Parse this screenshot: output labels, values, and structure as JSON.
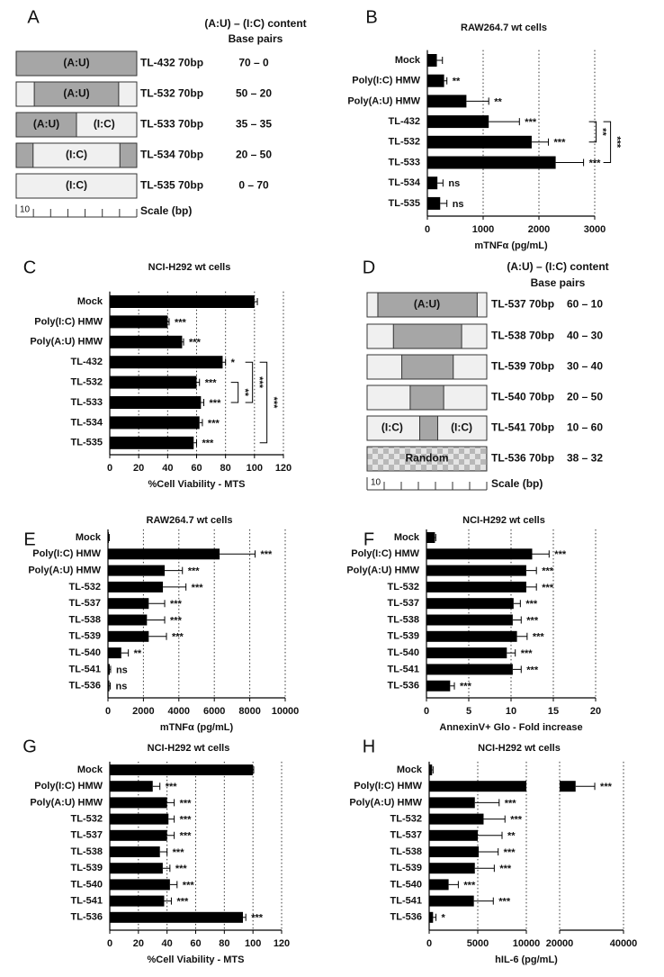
{
  "panel_labels": [
    "A",
    "B",
    "C",
    "D",
    "E",
    "F",
    "G",
    "H"
  ],
  "diagram_a": {
    "header": "(A:U) – (I:C) content",
    "subheader": "Base pairs",
    "rows": [
      {
        "name": "TL-432 70bp",
        "pairs": "70 – 0",
        "labels": [
          "(A:U)"
        ]
      },
      {
        "name": "TL-532 70bp",
        "pairs": "50 – 20",
        "labels": [
          "(A:U)"
        ]
      },
      {
        "name": "TL-533 70bp",
        "pairs": "35 – 35",
        "labels": [
          "(A:U)",
          "(I:C)"
        ]
      },
      {
        "name": "TL-534 70bp",
        "pairs": "20 – 50",
        "labels": [
          "(I:C)"
        ]
      },
      {
        "name": "TL-535 70bp",
        "pairs": "0 – 70",
        "labels": [
          "(I:C)"
        ]
      }
    ],
    "scale_number": 10,
    "scale_text": "Scale (bp)"
  },
  "diagram_d": {
    "header": "(A:U) – (I:C) content",
    "subheader": "Base pairs",
    "rows": [
      {
        "name": "TL-537 70bp",
        "pairs": "60 – 10",
        "labels": [
          "(A:U)"
        ]
      },
      {
        "name": "TL-538 70bp",
        "pairs": "40 – 30",
        "labels": []
      },
      {
        "name": "TL-539 70bp",
        "pairs": "30 – 40",
        "labels": []
      },
      {
        "name": "TL-540 70bp",
        "pairs": "20 – 50",
        "labels": []
      },
      {
        "name": "TL-541 70bp",
        "pairs": "10 – 60",
        "labels": [
          "(I:C)",
          "(I:C)"
        ]
      },
      {
        "name": "TL-536 70bp",
        "pairs": "38 – 32",
        "labels": [
          "Random"
        ]
      }
    ],
    "scale_number": 10,
    "scale_text": "Scale (bp)"
  },
  "chart_data": [
    {
      "type": "hbar",
      "title": "RAW264.7 wt cells",
      "xlabel": "mTNFα (pg/mL)",
      "categories": [
        "Mock",
        "Poly(I:C) HMW",
        "Poly(A:U) HMW",
        "TL-432",
        "TL-532",
        "TL-533",
        "TL-534",
        "TL-535"
      ],
      "values": [
        170,
        300,
        700,
        1100,
        1870,
        2300,
        180,
        230
      ],
      "errors": [
        100,
        50,
        400,
        550,
        300,
        500,
        100,
        120
      ],
      "annotations": [
        null,
        "**",
        "**",
        "***",
        "***",
        "***",
        "ns",
        "ns"
      ],
      "brackets": [
        {
          "from": 3,
          "to": 4,
          "label": "**"
        },
        {
          "from": 3,
          "to": 5,
          "label": "***"
        }
      ],
      "color": "#000000",
      "xlim": [
        0,
        3000
      ],
      "xticks": [
        0,
        1000,
        2000,
        3000
      ],
      "grid": true
    },
    {
      "type": "hbar",
      "title": "NCI-H292 wt cells",
      "xlabel": "%Cell Viability - MTS",
      "categories": [
        "Mock",
        "Poly(I:C) HMW",
        "Poly(A:U) HMW",
        "TL-432",
        "TL-532",
        "TL-533",
        "TL-534",
        "TL-535"
      ],
      "values": [
        100,
        40,
        50,
        78,
        60,
        63,
        62,
        58
      ],
      "errors": [
        2,
        1,
        1,
        2,
        2,
        2,
        2,
        2
      ],
      "annotations": [
        null,
        "***",
        "***",
        "*",
        "***",
        "***",
        "***",
        "***"
      ],
      "brackets": [
        {
          "from": 4,
          "to": 5,
          "label": "**"
        },
        {
          "from": 3,
          "to": 5,
          "label": "***"
        },
        {
          "from": 3,
          "to": 7,
          "label": "***"
        }
      ],
      "color": "#000000",
      "xlim": [
        0,
        120
      ],
      "xticks": [
        0,
        20,
        40,
        60,
        80,
        100,
        120
      ],
      "grid": true
    },
    {
      "type": "hbar",
      "title": "RAW264.7 wt cells",
      "xlabel": "mTNFα (pg/mL)",
      "categories": [
        "Mock",
        "Poly(I:C) HMW",
        "Poly(A:U) HMW",
        "TL-532",
        "TL-537",
        "TL-538",
        "TL-539",
        "TL-540",
        "TL-541",
        "TL-536"
      ],
      "values": [
        50,
        6300,
        3200,
        3100,
        2300,
        2200,
        2300,
        750,
        100,
        80
      ],
      "errors": [
        30,
        2000,
        1000,
        1300,
        900,
        1000,
        1000,
        400,
        50,
        50
      ],
      "annotations": [
        null,
        "***",
        "***",
        "***",
        "***",
        "***",
        "***",
        "**",
        "ns",
        "ns"
      ],
      "color": "#000000",
      "xlim": [
        0,
        10000
      ],
      "xticks": [
        0,
        2000,
        4000,
        6000,
        8000,
        10000
      ],
      "grid": true
    },
    {
      "type": "hbar",
      "title": "NCI-H292 wt cells",
      "xlabel": "AnnexinV+ Glo - Fold increase",
      "categories": [
        "Mock",
        "Poly(I:C) HMW",
        "Poly(A:U) HMW",
        "TL-532",
        "TL-537",
        "TL-538",
        "TL-539",
        "TL-540",
        "TL-541",
        "TL-536"
      ],
      "values": [
        1,
        12.5,
        11.8,
        11.8,
        10.3,
        10.2,
        10.7,
        9.5,
        10.2,
        2.8
      ],
      "errors": [
        0.1,
        2,
        1.2,
        1.2,
        0.8,
        1,
        1.2,
        1,
        1,
        0.5
      ],
      "annotations": [
        null,
        "***",
        "***",
        "***",
        "***",
        "***",
        "***",
        "***",
        "***",
        "***"
      ],
      "color": "#000000",
      "xlim": [
        0,
        20
      ],
      "xticks": [
        0,
        5,
        10,
        15,
        20
      ],
      "grid": true
    },
    {
      "type": "hbar",
      "title": "NCI-H292 wt cells",
      "xlabel": "%Cell Viability - MTS",
      "categories": [
        "Mock",
        "Poly(I:C) HMW",
        "Poly(A:U) HMW",
        "TL-532",
        "TL-537",
        "TL-538",
        "TL-539",
        "TL-540",
        "TL-541",
        "TL-536"
      ],
      "values": [
        100,
        30,
        40,
        41,
        40,
        35,
        37,
        42,
        38,
        93
      ],
      "errors": [
        0.5,
        5,
        5,
        4,
        5,
        5,
        5,
        5,
        5,
        2
      ],
      "annotations": [
        null,
        "***",
        "***",
        "***",
        "***",
        "***",
        "***",
        "***",
        "***",
        "***"
      ],
      "color": "#000000",
      "xlim": [
        0,
        120
      ],
      "xticks": [
        0,
        20,
        40,
        60,
        80,
        100,
        120
      ],
      "grid": true
    },
    {
      "type": "hbar",
      "title": "NCI-H292 wt cells",
      "xlabel": "hIL-6 (pg/mL)",
      "categories": [
        "Mock",
        "Poly(I:C) HMW",
        "Poly(A:U) HMW",
        "TL-532",
        "TL-537",
        "TL-538",
        "TL-539",
        "TL-540",
        "TL-541",
        "TL-536"
      ],
      "values": [
        300,
        25000,
        4700,
        5600,
        5000,
        5100,
        4700,
        2000,
        4600,
        400
      ],
      "errors": [
        100,
        6000,
        2500,
        2200,
        2500,
        2000,
        2000,
        1000,
        2000,
        300
      ],
      "annotations": [
        null,
        "***",
        "***",
        "***",
        "**",
        "***",
        "***",
        "***",
        "***",
        "*"
      ],
      "color": "#000000",
      "xlim": [
        0,
        40000
      ],
      "xbreak": [
        10000,
        20000
      ],
      "xticks": [
        0,
        5000,
        10000,
        20000,
        40000
      ],
      "grid": true
    }
  ]
}
